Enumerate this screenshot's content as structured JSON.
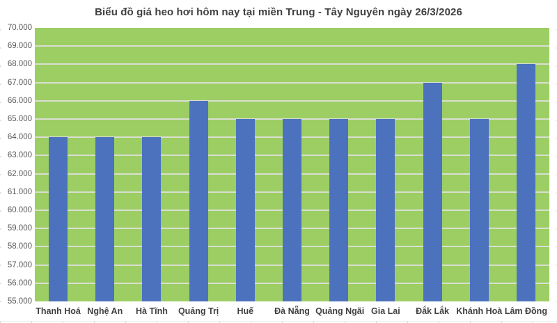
{
  "title": "Biểu đồ giá heo hơi hôm nay tại miền Trung - Tây Nguyên ngày 26/3/2026",
  "chart_data": {
    "type": "bar",
    "title": "Biểu đồ giá heo hơi hôm nay tại miền Trung - Tây Nguyên ngày 26/3/2026",
    "categories": [
      "Thanh Hoá",
      "Nghệ An",
      "Hà Tĩnh",
      "Quảng Trị",
      "Huế",
      "Đà Nẵng",
      "Quảng Ngãi",
      "Gia Lai",
      "Đắk Lắk",
      "Khánh Hoà",
      "Lâm Đồng"
    ],
    "values": [
      64000,
      64000,
      64000,
      66000,
      65000,
      65000,
      65000,
      65000,
      67000,
      65000,
      68000
    ],
    "xlabel": "",
    "ylabel": "",
    "ylim": [
      55000,
      70000
    ],
    "ytick_step": 1000,
    "ytick_labels": [
      "70.000",
      "69.000",
      "68.000",
      "67.000",
      "66.000",
      "65.000",
      "64.000",
      "63.000",
      "62.000",
      "61.000",
      "60.000",
      "59.000",
      "58.000",
      "57.000",
      "56.000",
      "55.000"
    ],
    "grid": true,
    "legend": false,
    "colors": {
      "bar": "#4C72BE",
      "plot_background": "#9CCE63",
      "gridline": "#D9DED1",
      "title_text": "#404040",
      "ytick_text": "#595959",
      "xtick_text": "#404040",
      "page_background": "#FFFFFF"
    }
  }
}
